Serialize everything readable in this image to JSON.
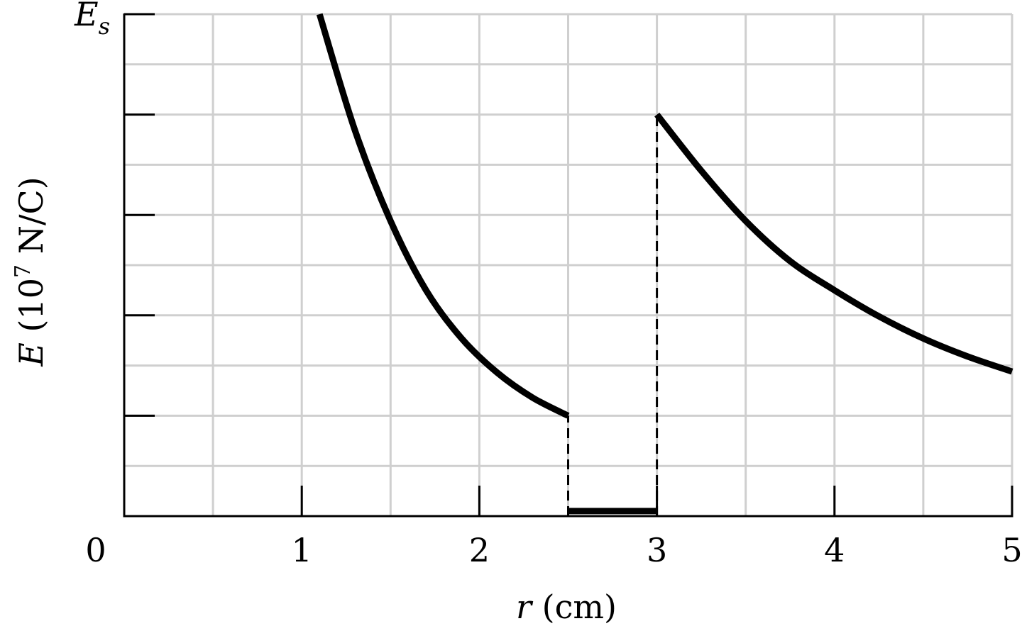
{
  "chart_data": {
    "type": "line",
    "xlabel_var": "r",
    "xlabel_unit": "(cm)",
    "ylabel_var": "E",
    "ylabel_unit_pre": "(10",
    "ylabel_unit_exp": "7",
    "ylabel_unit_post": " N/C)",
    "ytop_label_base": "E",
    "ytop_label_sub": "s",
    "x_ticks": [
      "0",
      "1",
      "2",
      "3",
      "4",
      "5"
    ],
    "xlim": [
      0,
      5
    ],
    "ylim": [
      0,
      5
    ],
    "y_major_ticks": [
      1,
      2,
      3,
      4,
      5
    ],
    "grid": true,
    "series": [
      {
        "x": [
          1.1,
          1.3,
          1.5,
          1.7,
          1.9,
          2.1,
          2.3,
          2.5
        ],
        "y": [
          5.0,
          3.84,
          2.94,
          2.25,
          1.77,
          1.43,
          1.18,
          1.0
        ]
      },
      {
        "x": [
          2.5,
          3.0
        ],
        "y": [
          0.05,
          0.05
        ]
      },
      {
        "x": [
          3.0,
          3.25,
          3.5,
          3.75,
          4.0,
          4.25,
          4.5,
          4.75,
          5.0
        ],
        "y": [
          4.0,
          3.44,
          2.94,
          2.54,
          2.25,
          1.99,
          1.77,
          1.59,
          1.44
        ]
      }
    ],
    "dashed_verticals": [
      {
        "x": 2.5,
        "y": [
          0,
          1.0
        ]
      },
      {
        "x": 3.0,
        "y": [
          0,
          4.0
        ]
      }
    ]
  }
}
